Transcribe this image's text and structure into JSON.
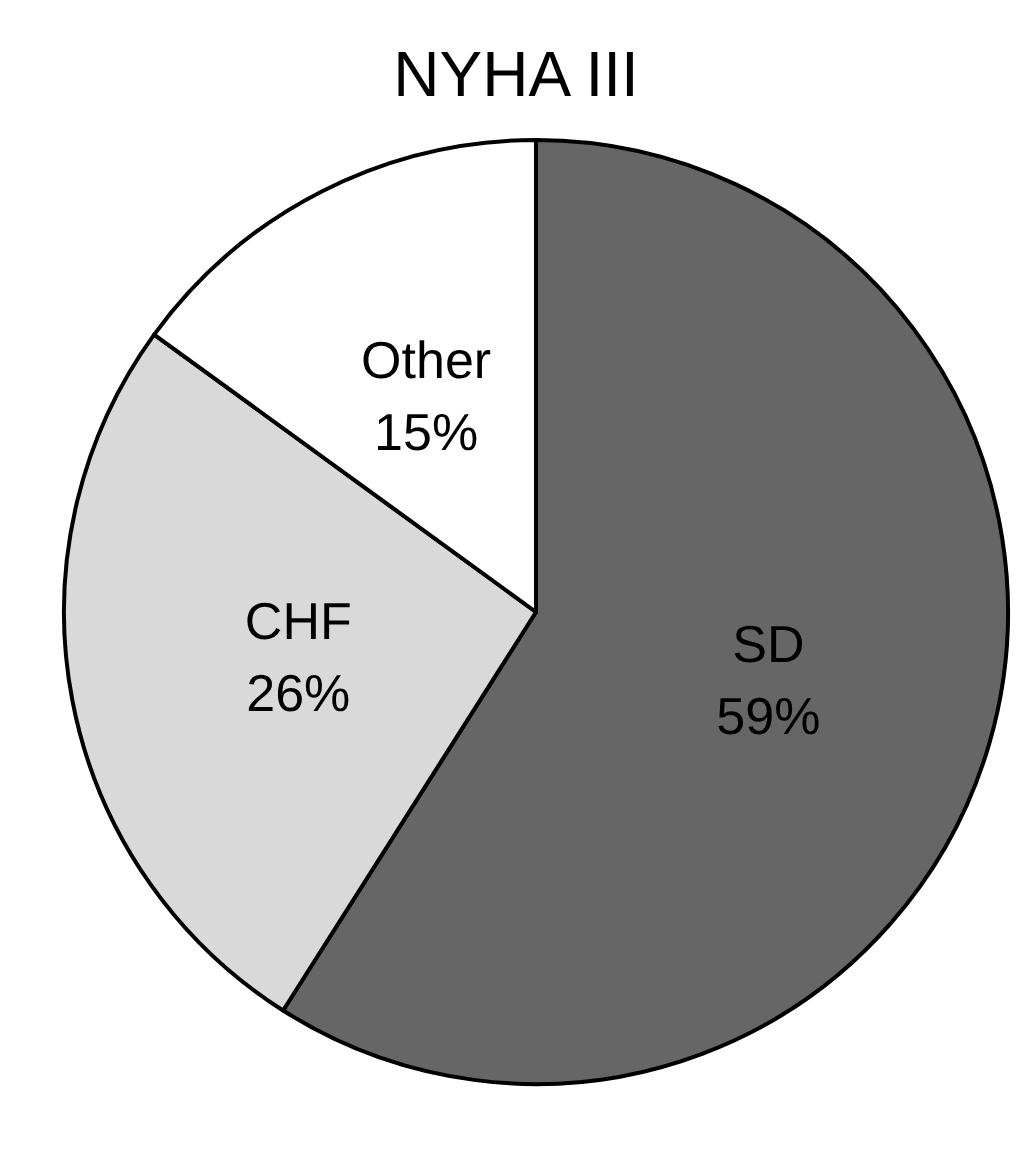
{
  "chart_data": {
    "type": "pie",
    "title": "NYHA III",
    "categories": [
      "SD",
      "CHF",
      "Other"
    ],
    "values": [
      59,
      26,
      15
    ],
    "colors": [
      "#666666",
      "#d9d9d9",
      "#ffffff"
    ],
    "value_labels": [
      "59%",
      "26%",
      "15%"
    ]
  }
}
